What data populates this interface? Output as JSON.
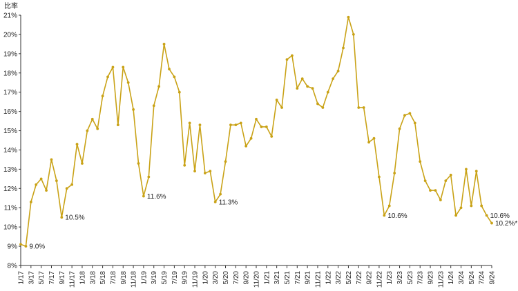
{
  "chart_data": {
    "type": "line",
    "ylabel": "比率",
    "ylim": [
      8,
      21
    ],
    "y_ticks": [
      "8%",
      "9%",
      "10%",
      "11%",
      "12%",
      "13%",
      "14%",
      "15%",
      "16%",
      "17%",
      "18%",
      "19%",
      "20%",
      "21%"
    ],
    "x_ticks": [
      "1/17",
      "3/17",
      "5/17",
      "7/17",
      "9/17",
      "11/17",
      "1/18",
      "3/18",
      "5/18",
      "7/18",
      "9/18",
      "11/18",
      "1/19",
      "3/19",
      "5/19",
      "7/19",
      "9/19",
      "11/19",
      "1/20",
      "3/20",
      "5/20",
      "7/20",
      "9/20",
      "11/20",
      "1/21",
      "3/21",
      "5/21",
      "7/21",
      "9/21",
      "11/21",
      "1/22",
      "3/22",
      "5/22",
      "7/22",
      "9/22",
      "11/22",
      "1/23",
      "3/23",
      "5/23",
      "7/23",
      "9/23",
      "11/23",
      "1/24",
      "3/24",
      "5/24",
      "7/24",
      "9/24"
    ],
    "series": [
      {
        "color": "#C9A216",
        "values": [
          9.1,
          9.0,
          11.3,
          12.2,
          12.5,
          11.9,
          13.5,
          12.4,
          10.5,
          12.0,
          12.2,
          14.3,
          13.3,
          15.0,
          15.6,
          15.1,
          16.8,
          17.8,
          18.3,
          15.3,
          18.3,
          17.5,
          16.1,
          13.3,
          11.6,
          12.6,
          16.3,
          17.3,
          19.5,
          18.2,
          17.8,
          17.0,
          13.2,
          15.4,
          12.9,
          15.3,
          12.8,
          12.9,
          11.3,
          11.7,
          13.4,
          15.3,
          15.3,
          15.4,
          14.2,
          14.6,
          15.6,
          15.2,
          15.2,
          14.7,
          16.6,
          16.2,
          18.7,
          18.9,
          17.2,
          17.7,
          17.3,
          17.2,
          16.4,
          16.2,
          17.0,
          17.7,
          18.1,
          19.3,
          20.9,
          20.0,
          16.2,
          16.2,
          14.4,
          14.6,
          12.6,
          10.6,
          11.1,
          12.8,
          15.1,
          15.8,
          15.9,
          15.4,
          13.4,
          12.4,
          11.9,
          11.9,
          11.4,
          12.4,
          12.7,
          10.6,
          11.0,
          13.0,
          11.1,
          12.9,
          11.1,
          10.6,
          10.2
        ]
      }
    ],
    "annotations": [
      {
        "index": 1,
        "text": "9.0%"
      },
      {
        "index": 8,
        "text": "10.5%"
      },
      {
        "index": 24,
        "text": "11.6%"
      },
      {
        "index": 38,
        "text": "11.3%"
      },
      {
        "index": 71,
        "text": "10.6%"
      },
      {
        "index": 91,
        "text": "10.6%"
      },
      {
        "index": 92,
        "text": "10.2%*"
      }
    ]
  }
}
